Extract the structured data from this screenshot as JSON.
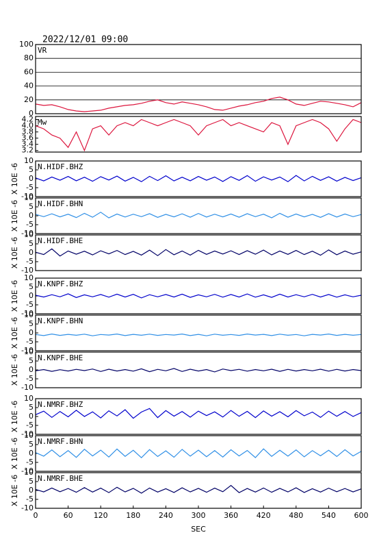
{
  "title": "2022/12/01 09:00",
  "chart_data": [
    {
      "type": "line",
      "label": "VR",
      "x": [
        0,
        15,
        30,
        45,
        60,
        75,
        90,
        105,
        120,
        135,
        150,
        165,
        180,
        195,
        210,
        225,
        240,
        255,
        270,
        285,
        300,
        315,
        330,
        345,
        360,
        375,
        390,
        405,
        420,
        435,
        450,
        465,
        480,
        495,
        510,
        525,
        540,
        555,
        570,
        585,
        600
      ],
      "xlim": [
        0,
        600
      ],
      "ylim": [
        0,
        100
      ],
      "yticks": [
        0,
        20,
        40,
        60,
        80,
        100
      ],
      "grid": true,
      "series": [
        {
          "color": "#dc143c",
          "values": [
            14,
            12,
            13,
            10,
            6,
            4,
            3,
            4,
            5,
            8,
            10,
            12,
            13,
            15,
            18,
            20,
            16,
            14,
            17,
            15,
            13,
            10,
            6,
            5,
            8,
            11,
            13,
            16,
            18,
            22,
            24,
            20,
            14,
            12,
            15,
            18,
            17,
            15,
            13,
            10,
            16
          ]
        }
      ]
    },
    {
      "type": "line",
      "label": "Mw",
      "x": [
        0,
        15,
        30,
        45,
        60,
        75,
        90,
        105,
        120,
        135,
        150,
        165,
        180,
        195,
        210,
        225,
        240,
        255,
        270,
        285,
        300,
        315,
        330,
        345,
        360,
        375,
        390,
        405,
        420,
        435,
        450,
        465,
        480,
        495,
        510,
        525,
        540,
        555,
        570,
        585,
        600
      ],
      "xlim": [
        0,
        600
      ],
      "ylim": [
        3.15,
        4.3
      ],
      "yticks": [
        3.2,
        3.4,
        3.6,
        3.8,
        {
          "value": 4,
          "label": "4.0"
        },
        4.2
      ],
      "grid": false,
      "series": [
        {
          "color": "#dc143c",
          "values": [
            4.0,
            3.9,
            3.7,
            3.6,
            3.3,
            3.8,
            3.2,
            3.9,
            4.0,
            3.7,
            4.0,
            4.1,
            4.0,
            4.2,
            4.1,
            4.0,
            4.1,
            4.2,
            4.1,
            4.0,
            3.7,
            4.0,
            4.1,
            4.2,
            4.0,
            4.1,
            4.0,
            3.9,
            3.8,
            4.1,
            4.0,
            3.4,
            4.0,
            4.1,
            4.2,
            4.1,
            3.9,
            3.5,
            3.9,
            4.2,
            4.1
          ]
        }
      ]
    },
    {
      "type": "line",
      "label": "N.HIDF.BHZ",
      "ylabel": "X 10E -6",
      "x": [
        0,
        15,
        30,
        45,
        60,
        75,
        90,
        105,
        120,
        135,
        150,
        165,
        180,
        195,
        210,
        225,
        240,
        255,
        270,
        285,
        300,
        315,
        330,
        345,
        360,
        375,
        390,
        405,
        420,
        435,
        450,
        465,
        480,
        495,
        510,
        525,
        540,
        555,
        570,
        585,
        600
      ],
      "xlim": [
        0,
        600
      ],
      "ylim": [
        -10,
        10
      ],
      "yticks": [
        -10,
        -5,
        0,
        5,
        10
      ],
      "series": [
        {
          "color": "#0000cc",
          "values": [
            0.5,
            -1.2,
            1.0,
            -0.8,
            1.3,
            -1.1,
            0.9,
            -1.4,
            1.2,
            -0.7,
            1.5,
            -1.3,
            0.8,
            -1.6,
            1.4,
            -1.0,
            1.7,
            -1.2,
            0.9,
            -1.1,
            1.3,
            -0.8,
            1.0,
            -1.5,
            1.2,
            -0.9,
            1.8,
            -1.4,
            1.1,
            -0.7,
            1.0,
            -1.6,
            1.9,
            -1.2,
            1.4,
            -0.9,
            1.1,
            -1.3,
            0.8,
            -1.0,
            0.6
          ]
        }
      ]
    },
    {
      "type": "line",
      "label": "N.HIDF.BHN",
      "ylabel": "X 10E -6",
      "x": [
        0,
        15,
        30,
        45,
        60,
        75,
        90,
        105,
        120,
        135,
        150,
        165,
        180,
        195,
        210,
        225,
        240,
        255,
        270,
        285,
        300,
        315,
        330,
        345,
        360,
        375,
        390,
        405,
        420,
        435,
        450,
        465,
        480,
        495,
        510,
        525,
        540,
        555,
        570,
        585,
        600
      ],
      "xlim": [
        0,
        600
      ],
      "ylim": [
        -10,
        10
      ],
      "yticks": [
        -10,
        -5,
        0,
        5,
        10
      ],
      "series": [
        {
          "color": "#2f8fe6",
          "values": [
            0.8,
            -0.5,
            1.1,
            -0.6,
            0.9,
            -1.0,
            1.4,
            -0.8,
            2.0,
            -1.2,
            1.0,
            -0.7,
            0.9,
            -0.5,
            1.2,
            -0.9,
            0.8,
            -0.6,
            1.1,
            -0.8,
            1.3,
            -0.7,
            0.9,
            -0.6,
            1.0,
            -0.8,
            1.2,
            -0.5,
            0.9,
            -1.1,
            1.4,
            -0.8,
            1.0,
            -0.6,
            0.8,
            -0.9,
            1.2,
            -0.7,
            1.0,
            -0.5,
            0.7
          ]
        }
      ]
    },
    {
      "type": "line",
      "label": "N.HIDF.BHE",
      "ylabel": "X 10E -6",
      "x": [
        0,
        15,
        30,
        45,
        60,
        75,
        90,
        105,
        120,
        135,
        150,
        165,
        180,
        195,
        210,
        225,
        240,
        255,
        270,
        285,
        300,
        315,
        330,
        345,
        360,
        375,
        390,
        405,
        420,
        435,
        450,
        465,
        480,
        495,
        510,
        525,
        540,
        555,
        570,
        585,
        600
      ],
      "xlim": [
        0,
        600
      ],
      "ylim": [
        -10,
        10
      ],
      "yticks": [
        -10,
        -5,
        0,
        5,
        10
      ],
      "series": [
        {
          "color": "#000066",
          "values": [
            0.3,
            -1.0,
            2.2,
            -1.8,
            1.0,
            -0.8,
            0.9,
            -1.2,
            1.1,
            -0.6,
            1.3,
            -1.0,
            0.8,
            -1.3,
            1.5,
            -1.6,
            1.8,
            -1.1,
            1.0,
            -1.3,
            1.4,
            -0.9,
            1.0,
            -0.7,
            1.1,
            -1.0,
            1.2,
            -0.8,
            1.5,
            -1.2,
            1.0,
            -0.9,
            1.3,
            -1.0,
            0.9,
            -1.4,
            1.6,
            -1.1,
            1.0,
            -0.8,
            0.5
          ]
        }
      ]
    },
    {
      "type": "line",
      "label": "N.KNPF.BHZ",
      "ylabel": "X 10E -6",
      "x": [
        0,
        15,
        30,
        45,
        60,
        75,
        90,
        105,
        120,
        135,
        150,
        165,
        180,
        195,
        210,
        225,
        240,
        255,
        270,
        285,
        300,
        315,
        330,
        345,
        360,
        375,
        390,
        405,
        420,
        435,
        450,
        465,
        480,
        495,
        510,
        525,
        540,
        555,
        570,
        585,
        600
      ],
      "xlim": [
        0,
        600
      ],
      "ylim": [
        -10,
        10
      ],
      "yticks": [
        -10,
        -5,
        0,
        5,
        10
      ],
      "series": [
        {
          "color": "#0000cc",
          "values": [
            0.4,
            -0.6,
            0.7,
            -0.5,
            1.2,
            -0.9,
            0.6,
            -0.5,
            0.8,
            -0.7,
            1.0,
            -0.6,
            0.9,
            -1.1,
            0.7,
            -0.5,
            0.8,
            -0.6,
            1.0,
            -0.8,
            0.6,
            -0.5,
            0.9,
            -0.7,
            0.8,
            -0.6,
            1.1,
            -0.7,
            0.6,
            -0.8,
            1.0,
            -0.6,
            0.7,
            -0.5,
            0.9,
            -0.6,
            0.8,
            -0.7,
            0.6,
            -0.5,
            0.4
          ]
        }
      ]
    },
    {
      "type": "line",
      "label": "N.KNPF.BHN",
      "ylabel": "X 10E -6",
      "x": [
        0,
        15,
        30,
        45,
        60,
        75,
        90,
        105,
        120,
        135,
        150,
        165,
        180,
        195,
        210,
        225,
        240,
        255,
        270,
        285,
        300,
        315,
        330,
        345,
        360,
        375,
        390,
        405,
        420,
        435,
        450,
        465,
        480,
        495,
        510,
        525,
        540,
        555,
        570,
        585,
        600
      ],
      "xlim": [
        0,
        600
      ],
      "ylim": [
        -10,
        10
      ],
      "yticks": [
        -10,
        -5,
        0,
        5,
        10
      ],
      "series": [
        {
          "color": "#2f8fe6",
          "values": [
            -0.9,
            -1.5,
            -0.6,
            -1.4,
            -0.8,
            -1.3,
            -0.7,
            -1.6,
            -0.9,
            -1.2,
            -0.6,
            -1.5,
            -0.8,
            -1.3,
            -0.7,
            -1.4,
            -0.9,
            -1.2,
            -0.6,
            -1.5,
            -0.8,
            -1.6,
            -0.7,
            -1.3,
            -0.9,
            -1.4,
            -0.6,
            -1.2,
            -0.8,
            -1.5,
            -0.7,
            -1.3,
            -0.9,
            -1.6,
            -0.8,
            -1.2,
            -0.6,
            -1.4,
            -0.8,
            -1.3,
            -0.9
          ]
        }
      ]
    },
    {
      "type": "line",
      "label": "N.KNPF.BHE",
      "ylabel": "X 10E -6",
      "x": [
        0,
        15,
        30,
        45,
        60,
        75,
        90,
        105,
        120,
        135,
        150,
        165,
        180,
        195,
        210,
        225,
        240,
        255,
        270,
        285,
        300,
        315,
        330,
        345,
        360,
        375,
        390,
        405,
        420,
        435,
        450,
        465,
        480,
        495,
        510,
        525,
        540,
        555,
        570,
        585,
        600
      ],
      "xlim": [
        0,
        600
      ],
      "ylim": [
        -10,
        10
      ],
      "yticks": [
        -10,
        -5,
        0,
        5,
        10
      ],
      "series": [
        {
          "color": "#000066",
          "values": [
            -0.5,
            0.2,
            -0.8,
            0.1,
            -0.6,
            0.3,
            -0.4,
            0.5,
            -0.9,
            0.4,
            -0.6,
            0.2,
            -0.7,
            0.6,
            -1.0,
            0.3,
            -0.5,
            0.8,
            -0.9,
            0.4,
            -0.6,
            0.2,
            -1.1,
            0.5,
            -0.4,
            0.3,
            -0.7,
            0.2,
            -0.5,
            0.4,
            -0.8,
            0.3,
            -0.6,
            0.2,
            -0.5,
            0.4,
            -0.7,
            0.3,
            -0.6,
            0.2,
            -0.4
          ]
        }
      ]
    },
    {
      "type": "line",
      "label": "N.NMRF.BHZ",
      "ylabel": "X 10E -6",
      "x": [
        0,
        15,
        30,
        45,
        60,
        75,
        90,
        105,
        120,
        135,
        150,
        165,
        180,
        195,
        210,
        225,
        240,
        255,
        270,
        285,
        300,
        315,
        330,
        345,
        360,
        375,
        390,
        405,
        420,
        435,
        450,
        465,
        480,
        495,
        510,
        525,
        540,
        555,
        570,
        585,
        600
      ],
      "xlim": [
        0,
        600
      ],
      "ylim": [
        -10,
        10
      ],
      "yticks": [
        -10,
        -5,
        0,
        5,
        10
      ],
      "series": [
        {
          "color": "#0000cc",
          "values": [
            1.0,
            3.0,
            -0.5,
            2.8,
            -0.2,
            3.5,
            0.0,
            2.6,
            -0.8,
            3.2,
            0.3,
            3.8,
            -1.0,
            2.5,
            4.5,
            -0.6,
            3.3,
            0.2,
            2.8,
            -0.4,
            3.0,
            0.5,
            2.6,
            -0.3,
            3.4,
            0.1,
            2.9,
            -0.6,
            3.1,
            0.2,
            2.7,
            -0.2,
            3.3,
            0.4,
            2.5,
            -0.5,
            3.0,
            0.1,
            2.8,
            0.0,
            2.2
          ]
        }
      ]
    },
    {
      "type": "line",
      "label": "N.NMRF.BHN",
      "ylabel": "X 10E -6",
      "x": [
        0,
        15,
        30,
        45,
        60,
        75,
        90,
        105,
        120,
        135,
        150,
        165,
        180,
        195,
        210,
        225,
        240,
        255,
        270,
        285,
        300,
        315,
        330,
        345,
        360,
        375,
        390,
        405,
        420,
        435,
        450,
        465,
        480,
        495,
        510,
        525,
        540,
        555,
        570,
        585,
        600
      ],
      "xlim": [
        0,
        600
      ],
      "ylim": [
        -10,
        10
      ],
      "yticks": [
        -10,
        -5,
        0,
        5,
        10
      ],
      "series": [
        {
          "color": "#2f8fe6",
          "values": [
            0.5,
            -1.5,
            2.0,
            -1.8,
            1.6,
            -2.2,
            2.4,
            -1.4,
            1.9,
            -2.0,
            2.5,
            -1.6,
            1.8,
            -2.4,
            2.2,
            -1.7,
            1.5,
            -2.1,
            2.3,
            -1.5,
            1.9,
            -1.8,
            1.6,
            -2.0,
            2.1,
            -1.4,
            1.7,
            -2.3,
            2.6,
            -1.6,
            1.8,
            -1.5,
            2.0,
            -1.9,
            1.6,
            -1.3,
            1.8,
            -1.7,
            2.1,
            -1.4,
            1.2
          ]
        }
      ]
    },
    {
      "type": "line",
      "label": "N.NMRF.BHE",
      "ylabel": "X 10E -6",
      "x": [
        0,
        15,
        30,
        45,
        60,
        75,
        90,
        105,
        120,
        135,
        150,
        165,
        180,
        195,
        210,
        225,
        240,
        255,
        270,
        285,
        300,
        315,
        330,
        345,
        360,
        375,
        390,
        405,
        420,
        435,
        450,
        465,
        480,
        495,
        510,
        525,
        540,
        555,
        570,
        585,
        600
      ],
      "xlim": [
        0,
        600
      ],
      "ylim": [
        -10,
        10
      ],
      "yticks": [
        -10,
        -5,
        0,
        5,
        10
      ],
      "xticks": [
        0,
        60,
        120,
        180,
        240,
        300,
        360,
        420,
        480,
        540,
        600
      ],
      "xlabel": "SEC",
      "series": [
        {
          "color": "#000066",
          "values": [
            0.6,
            -0.8,
            1.4,
            -0.7,
            1.1,
            -1.0,
            1.6,
            -0.9,
            1.3,
            -1.2,
            1.8,
            -0.8,
            1.2,
            -1.5,
            1.4,
            -0.9,
            1.0,
            -1.1,
            1.5,
            -0.8,
            1.2,
            -1.0,
            1.3,
            -0.7,
            2.8,
            -1.2,
            1.1,
            -0.9,
            1.4,
            -1.0,
            1.2,
            -0.8,
            1.5,
            -1.1,
            1.0,
            -0.9,
            1.3,
            -0.7,
            1.1,
            -0.8,
            0.9
          ]
        }
      ]
    }
  ]
}
